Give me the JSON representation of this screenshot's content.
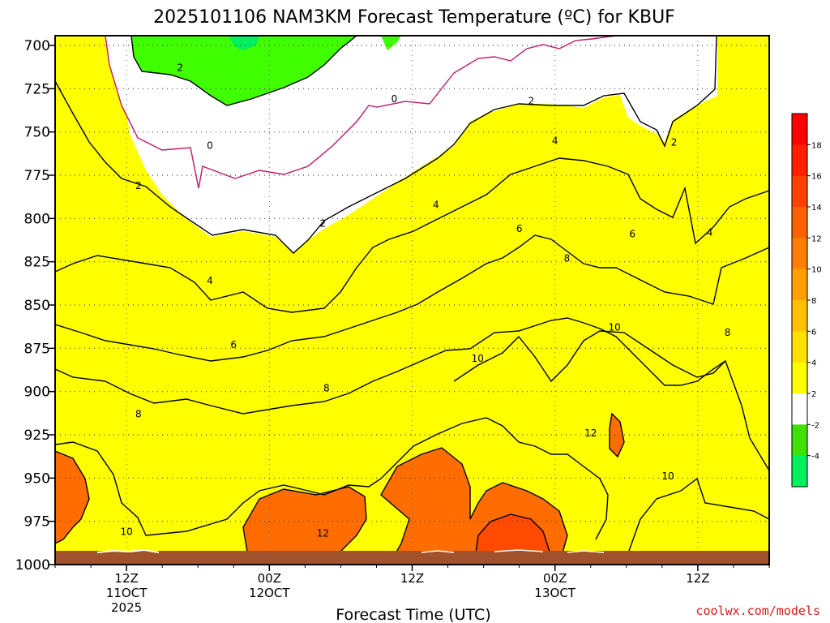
{
  "chart_data": {
    "type": "heatmap",
    "title": "2025101106 NAM3KM Forecast Temperature (ºC) for KBUF",
    "xlabel": "Forecast Time (UTC)",
    "ylabel": "",
    "y_ticks": [
      "700",
      "725",
      "750",
      "775",
      "800",
      "825",
      "850",
      "875",
      "900",
      "925",
      "950",
      "975",
      "1000"
    ],
    "x_ticks": [
      {
        "hour": 6,
        "lines": [
          "12Z",
          "11OCT",
          "2025"
        ]
      },
      {
        "hour": 18,
        "lines": [
          "00Z",
          "12OCT"
        ]
      },
      {
        "hour": 30,
        "lines": [
          "12Z"
        ]
      },
      {
        "hour": 42,
        "lines": [
          "00Z",
          "13OCT"
        ]
      },
      {
        "hour": 54,
        "lines": [
          "12Z"
        ]
      }
    ],
    "xlim": [
      0,
      60
    ],
    "ylim": [
      1000,
      700
    ],
    "grid": true,
    "units": "ºC",
    "colorbar": {
      "levels": [
        "-4",
        "-2",
        "2",
        "4",
        "6",
        "8",
        "10",
        "12",
        "14",
        "16",
        "18"
      ],
      "colors": [
        "#00f060",
        "#40e000",
        "#ffffff",
        "#ffff00",
        "#ffe000",
        "#ffc000",
        "#ffa000",
        "#ff8000",
        "#ff6000",
        "#ff4000",
        "#ff2000",
        "#ff0000"
      ]
    },
    "temperature_bands": [
      {
        "range": "-4 to -2",
        "color": "#00f060"
      },
      {
        "range": "-2 to 0",
        "color": "#40ff00"
      },
      {
        "range": "0 to 2",
        "color": "#ffffff"
      },
      {
        "range": "2 to 4",
        "color": "#ffff00"
      },
      {
        "range": "4 to 6",
        "color": "#ffe000"
      },
      {
        "range": "6 to 8",
        "color": "#ffc800"
      },
      {
        "range": "8 to 10",
        "color": "#ffa800"
      },
      {
        "range": "10 to 12",
        "color": "#ff8c00"
      },
      {
        "range": "12 to 14",
        "color": "#ff6c00"
      },
      {
        "range": "14 to 16",
        "color": "#ff4a00"
      }
    ],
    "contour_labels": [
      {
        "text": "2",
        "hour": 10.5,
        "pressure": 713
      },
      {
        "text": "0",
        "hour": 13.0,
        "pressure": 758
      },
      {
        "text": "0",
        "hour": 28.5,
        "pressure": 731
      },
      {
        "text": "2",
        "hour": 40.0,
        "pressure": 732
      },
      {
        "text": "2",
        "hour": 7.0,
        "pressure": 781
      },
      {
        "text": "4",
        "hour": 42.0,
        "pressure": 755
      },
      {
        "text": "2",
        "hour": 52.0,
        "pressure": 756
      },
      {
        "text": "2",
        "hour": 22.5,
        "pressure": 803
      },
      {
        "text": "4",
        "hour": 32.0,
        "pressure": 792
      },
      {
        "text": "6",
        "hour": 39.0,
        "pressure": 806
      },
      {
        "text": "6",
        "hour": 48.5,
        "pressure": 809
      },
      {
        "text": "4",
        "hour": 55.0,
        "pressure": 808
      },
      {
        "text": "8",
        "hour": 43.0,
        "pressure": 823
      },
      {
        "text": "4",
        "hour": 13.0,
        "pressure": 836
      },
      {
        "text": "10",
        "hour": 47.0,
        "pressure": 863
      },
      {
        "text": "8",
        "hour": 56.5,
        "pressure": 866
      },
      {
        "text": "6",
        "hour": 15.0,
        "pressure": 873
      },
      {
        "text": "10",
        "hour": 35.5,
        "pressure": 881
      },
      {
        "text": "8",
        "hour": 22.8,
        "pressure": 898
      },
      {
        "text": "8",
        "hour": 7.0,
        "pressure": 913
      },
      {
        "text": "12",
        "hour": 45.0,
        "pressure": 924
      },
      {
        "text": "10",
        "hour": 51.5,
        "pressure": 949
      },
      {
        "text": "12",
        "hour": 22.5,
        "pressure": 982
      },
      {
        "text": "10",
        "hour": 6.0,
        "pressure": 981
      }
    ]
  },
  "credit": "coolwx.com/models"
}
